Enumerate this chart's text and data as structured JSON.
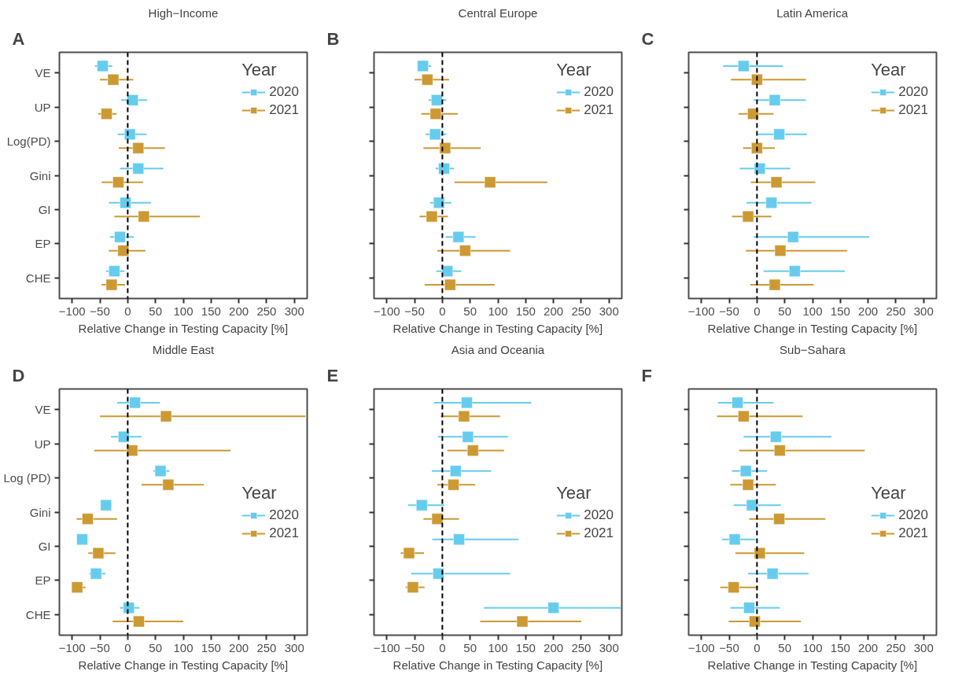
{
  "chart_data": [
    {
      "type": "scatter",
      "orientation": "horizontal",
      "title": "High−Income",
      "annotations": [
        "A"
      ],
      "xlabel": "Relative Change in Testing Capacity [%]",
      "categories": [
        "VE",
        "UP",
        "Log(PD)",
        "Gini",
        "GI",
        "EP",
        "CHE"
      ],
      "xlim": [
        -123,
        323
      ],
      "xticks": [
        -100,
        -50,
        0,
        50,
        100,
        150,
        200,
        250,
        300
      ],
      "legend_title": "Year",
      "legend": "top right",
      "grid": false,
      "marker": "square",
      "ref_lines": [
        {
          "axis": "x",
          "value": 0,
          "label": null,
          "color": "#000000",
          "line_style": "dashed"
        }
      ],
      "series": [
        {
          "name": "2020",
          "color": "#66ccee",
          "values": [
            -45,
            9,
            4,
            19,
            -4,
            -14,
            -24
          ],
          "errors": [
            [
              -59,
              -28
            ],
            [
              -12,
              35
            ],
            [
              -18,
              34
            ],
            [
              -14,
              64
            ],
            [
              -34,
              42
            ],
            [
              -32,
              11
            ],
            [
              -39,
              -6
            ]
          ]
        },
        {
          "name": "2021",
          "color": "#cc9933",
          "values": [
            -26,
            -38,
            19,
            -17,
            29,
            -8,
            -29
          ],
          "errors": [
            [
              -50,
              10
            ],
            [
              -53,
              -20
            ],
            [
              -16,
              67
            ],
            [
              -47,
              28
            ],
            [
              -24,
              130
            ],
            [
              -34,
              32
            ],
            [
              -47,
              -5
            ]
          ]
        }
      ]
    },
    {
      "type": "scatter",
      "orientation": "horizontal",
      "title": "Central Europe",
      "annotations": [
        "B"
      ],
      "xlabel": "Relative Change in Testing Capacity [%]",
      "categories": [
        null,
        null,
        null,
        null,
        null,
        null,
        null
      ],
      "xlim": [
        -123,
        323
      ],
      "xticks": [
        -100,
        -50,
        0,
        50,
        100,
        150,
        200,
        250,
        300
      ],
      "legend_title": "Year",
      "legend": "top right",
      "grid": false,
      "marker": "square",
      "ref_lines": [
        {
          "axis": "x",
          "value": 0,
          "label": null,
          "color": "#000000",
          "line_style": "dashed"
        }
      ],
      "series": [
        {
          "name": "2020",
          "color": "#66ccee",
          "values": [
            -35,
            -10,
            -13,
            3,
            -6,
            29,
            9
          ],
          "errors": [
            [
              -45,
              -20
            ],
            [
              -25,
              7
            ],
            [
              -30,
              7
            ],
            [
              -12,
              21
            ],
            [
              -22,
              16
            ],
            [
              6,
              60
            ],
            [
              -11,
              34
            ]
          ]
        },
        {
          "name": "2021",
          "color": "#cc9933",
          "values": [
            -27,
            -12,
            5,
            86,
            -19,
            41,
            14
          ],
          "errors": [
            [
              -50,
              12
            ],
            [
              -38,
              28
            ],
            [
              -34,
              69
            ],
            [
              22,
              189
            ],
            [
              -41,
              10
            ],
            [
              -9,
              122
            ],
            [
              -32,
              94
            ]
          ]
        }
      ]
    },
    {
      "type": "scatter",
      "orientation": "horizontal",
      "title": "Latin America",
      "annotations": [
        "C"
      ],
      "xlabel": "Relative Change in Testing Capacity [%]",
      "categories": [
        null,
        null,
        null,
        null,
        null,
        null,
        null
      ],
      "xlim": [
        -123,
        323
      ],
      "xticks": [
        -100,
        -50,
        0,
        50,
        100,
        150,
        200,
        250,
        300
      ],
      "legend_title": "Year",
      "legend": "top right",
      "grid": false,
      "marker": "square",
      "ref_lines": [
        {
          "axis": "x",
          "value": 0,
          "label": null,
          "color": "#000000",
          "line_style": "dashed"
        }
      ],
      "series": [
        {
          "name": "2020",
          "color": "#66ccee",
          "values": [
            -24,
            32,
            40,
            5,
            26,
            65,
            68
          ],
          "errors": [
            [
              -61,
              47
            ],
            [
              -6,
              88
            ],
            [
              2,
              90
            ],
            [
              -31,
              60
            ],
            [
              -19,
              98
            ],
            [
              -6,
              202
            ],
            [
              12,
              158
            ]
          ]
        },
        {
          "name": "2021",
          "color": "#cc9933",
          "values": [
            0,
            -7,
            0,
            35,
            -16,
            42,
            32
          ],
          "errors": [
            [
              -47,
              88
            ],
            [
              -33,
              30
            ],
            [
              -25,
              32
            ],
            [
              -11,
              105
            ],
            [
              -45,
              26
            ],
            [
              -20,
              162
            ],
            [
              -12,
              102
            ]
          ]
        }
      ]
    },
    {
      "type": "scatter",
      "orientation": "horizontal",
      "title": "Middle East",
      "annotations": [
        "D"
      ],
      "xlabel": "Relative Change in Testing Capacity [%]",
      "categories": [
        "VE",
        "UP",
        "Log (PD)",
        "Gini",
        "GI",
        "EP",
        "CHE"
      ],
      "xlim": [
        -123,
        323
      ],
      "xticks": [
        -100,
        -50,
        0,
        50,
        100,
        150,
        200,
        250,
        300
      ],
      "legend_title": "Year",
      "legend": "right",
      "grid": false,
      "marker": "square",
      "ref_lines": [
        {
          "axis": "x",
          "value": 0,
          "label": null,
          "color": "#000000",
          "line_style": "dashed"
        }
      ],
      "series": [
        {
          "name": "2020",
          "color": "#66ccee",
          "values": [
            13,
            -7,
            59,
            -39,
            -82,
            -57,
            2
          ],
          "errors": [
            [
              -19,
              58
            ],
            [
              -30,
              25
            ],
            [
              46,
              75
            ],
            [
              -45,
              -29
            ],
            null,
            [
              -69,
              -40
            ],
            [
              -14,
              21
            ]
          ]
        },
        {
          "name": "2021",
          "color": "#cc9933",
          "values": [
            69,
            8,
            73,
            -72,
            -53,
            -91,
            20
          ],
          "errors": [
            [
              -50,
              320
            ],
            [
              -60,
              185
            ],
            [
              25,
              137
            ],
            [
              -92,
              -19
            ],
            [
              -71,
              -22
            ],
            [
              -99,
              -76
            ],
            [
              -27,
              100
            ]
          ]
        }
      ]
    },
    {
      "type": "scatter",
      "orientation": "horizontal",
      "title": "Asia and Oceania",
      "annotations": [
        "E"
      ],
      "xlabel": "Relative Change in Testing Capacity [%]",
      "categories": [
        null,
        null,
        null,
        null,
        null,
        null,
        null
      ],
      "xlim": [
        -123,
        323
      ],
      "xticks": [
        -100,
        -50,
        0,
        50,
        100,
        150,
        200,
        250,
        300
      ],
      "legend_title": "Year",
      "legend": "right",
      "grid": false,
      "marker": "square",
      "ref_lines": [
        {
          "axis": "x",
          "value": 0,
          "label": null,
          "color": "#000000",
          "line_style": "dashed"
        }
      ],
      "series": [
        {
          "name": "2020",
          "color": "#66ccee",
          "values": [
            44,
            46,
            24,
            -37,
            30,
            -7,
            200
          ],
          "errors": [
            [
              -15,
              160
            ],
            [
              -8,
              118
            ],
            [
              -19,
              88
            ],
            [
              -62,
              3
            ],
            [
              -18,
              137
            ],
            [
              -56,
              122
            ],
            [
              75,
              322
            ]
          ]
        },
        {
          "name": "2021",
          "color": "#cc9933",
          "values": [
            39,
            55,
            20,
            -9,
            -60,
            -53,
            144
          ],
          "errors": [
            [
              -3,
              104
            ],
            [
              9,
              111
            ],
            [
              -9,
              59
            ],
            [
              -34,
              30
            ],
            [
              -75,
              -33
            ],
            [
              -66,
              -32
            ],
            [
              68,
              250
            ]
          ]
        }
      ]
    },
    {
      "type": "scatter",
      "orientation": "horizontal",
      "title": "Sub−Sahara",
      "annotations": [
        "F"
      ],
      "xlabel": "Relative Change in Testing Capacity [%]",
      "categories": [
        null,
        null,
        null,
        null,
        null,
        null,
        null
      ],
      "xlim": [
        -123,
        323
      ],
      "xticks": [
        -100,
        -50,
        0,
        50,
        100,
        150,
        200,
        250,
        300
      ],
      "legend_title": "Year",
      "legend": "right",
      "grid": false,
      "marker": "square",
      "ref_lines": [
        {
          "axis": "x",
          "value": 0,
          "label": null,
          "color": "#000000",
          "line_style": "dashed"
        }
      ],
      "series": [
        {
          "name": "2020",
          "color": "#66ccee",
          "values": [
            -35,
            34,
            -20,
            -9,
            -40,
            28,
            -14
          ],
          "errors": [
            [
              -70,
              30
            ],
            [
              -24,
              134
            ],
            [
              -45,
              18
            ],
            [
              -42,
              43
            ],
            [
              -63,
              -3
            ],
            [
              -16,
              93
            ],
            [
              -48,
              41
            ]
          ]
        },
        {
          "name": "2021",
          "color": "#cc9933",
          "values": [
            -24,
            41,
            -16,
            40,
            5,
            -42,
            -4
          ],
          "errors": [
            [
              -72,
              82
            ],
            [
              -32,
              194
            ],
            [
              -48,
              34
            ],
            [
              -14,
              123
            ],
            [
              -39,
              85
            ],
            [
              -66,
              2
            ],
            [
              -51,
              79
            ]
          ]
        }
      ]
    }
  ]
}
